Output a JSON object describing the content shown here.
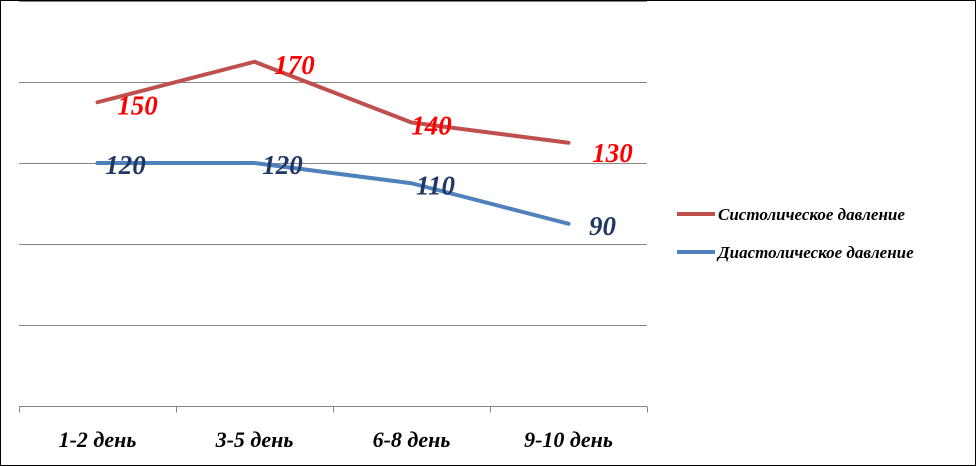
{
  "chart_data": {
    "type": "line",
    "title": "",
    "xlabel": "",
    "ylabel": "",
    "categories": [
      "1-2 день",
      "3-5 день",
      "6-8 день",
      "9-10 день"
    ],
    "ylim": [
      0,
      200
    ],
    "grid": true,
    "legend_position": "right",
    "series": [
      {
        "name": "Систолическое давление",
        "values": [
          150,
          170,
          140,
          130
        ],
        "color": "#c0504d",
        "label_color": "#ff0000"
      },
      {
        "name": "Диастолическое давление",
        "values": [
          120,
          120,
          110,
          90
        ],
        "color": "#4f81bd",
        "label_color": "#1f3864"
      }
    ]
  }
}
